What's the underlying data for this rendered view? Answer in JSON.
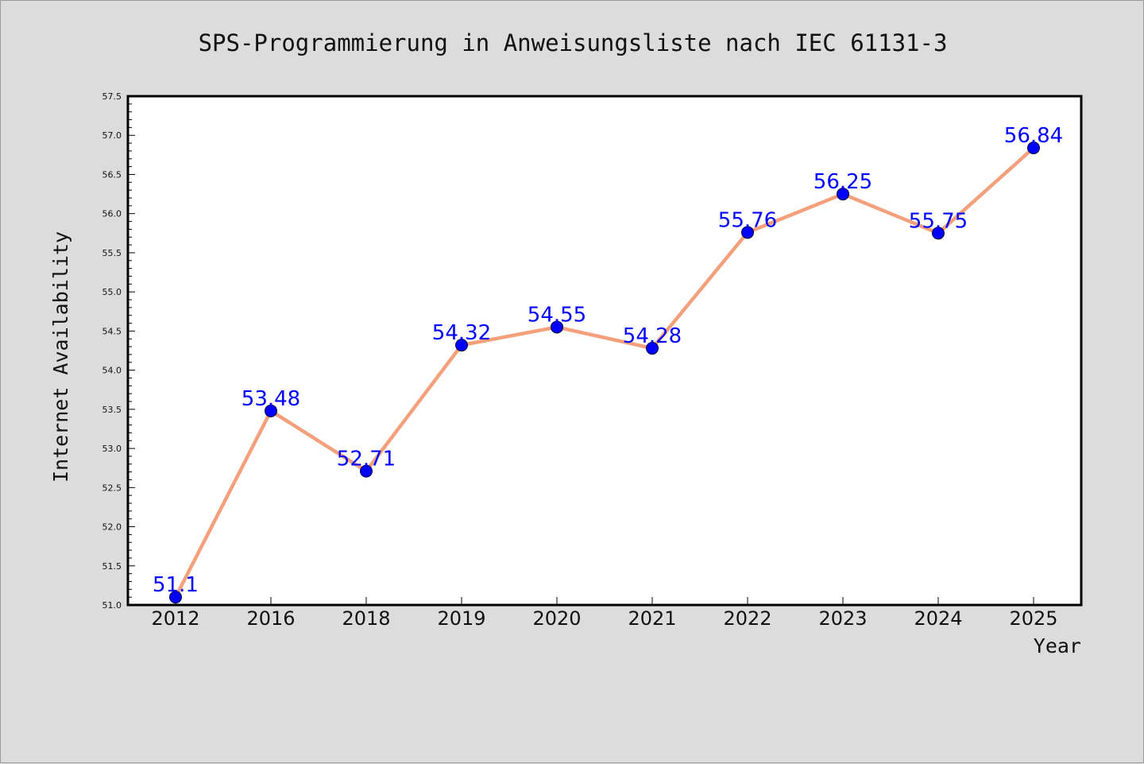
{
  "colors": {
    "background": "#dcdcdc",
    "plot_background": "#ffffff",
    "line": "#f4a07c",
    "marker": "#0000ff",
    "data_label": "#0000ff"
  },
  "chart_data": {
    "type": "line",
    "title": "SPS-Programmierung in Anweisungsliste nach IEC 61131-3",
    "xlabel": "Year",
    "ylabel": "Internet Availability",
    "categories": [
      "2012",
      "2016",
      "2018",
      "2019",
      "2020",
      "2021",
      "2022",
      "2023",
      "2024",
      "2025"
    ],
    "series": [
      {
        "values": [
          51.1,
          53.48,
          52.71,
          54.32,
          54.55,
          54.28,
          55.76,
          56.25,
          55.75,
          56.84
        ],
        "data_labels": [
          "51.1",
          "53.48",
          "52.71",
          "54.32",
          "54.55",
          "54.28",
          "55.76",
          "56.25",
          "55.75",
          "56.84"
        ]
      }
    ],
    "ylim": [
      51.0,
      57.5
    ],
    "yticks": [
      "51.0",
      "51.5",
      "52.0",
      "52.5",
      "53.0",
      "53.5",
      "54.0",
      "54.5",
      "55.0",
      "55.5",
      "56.0",
      "56.5",
      "57.0",
      "57.5"
    ],
    "grid": false,
    "legend": "none"
  }
}
